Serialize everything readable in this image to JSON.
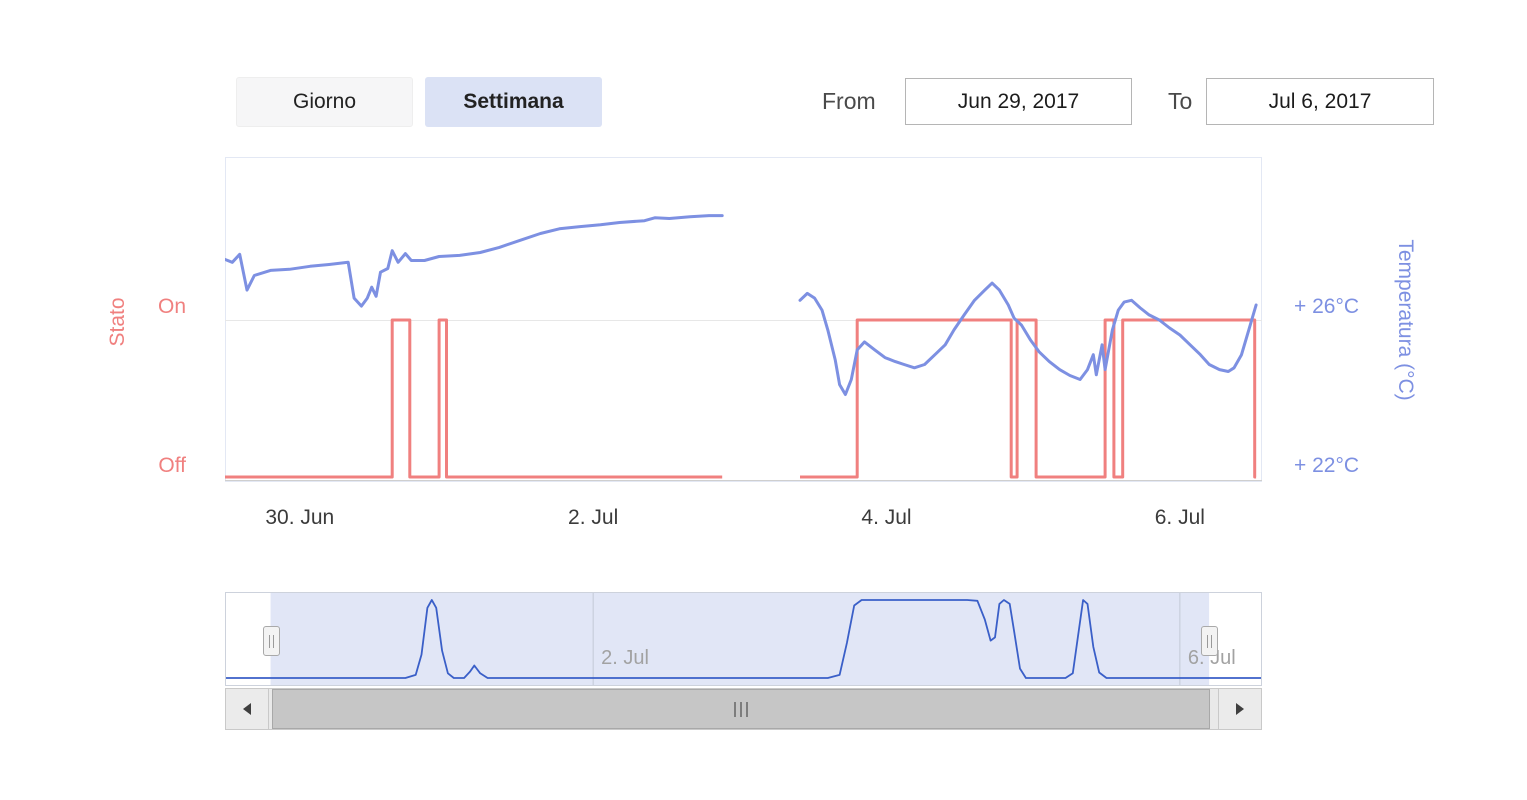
{
  "toolbar": {
    "range_buttons": [
      {
        "label": "Giorno",
        "active": false
      },
      {
        "label": "Settimana",
        "active": true
      }
    ],
    "from_label": "From",
    "from_value": "Jun 29, 2017",
    "to_label": "To",
    "to_value": "Jul 6, 2017"
  },
  "chart_data": {
    "type": "line",
    "title": "",
    "x_axis": {
      "range_days": [
        29.49,
        36.56
      ],
      "ticks": [
        {
          "day": 30,
          "label": "30. Jun"
        },
        {
          "day": 32,
          "label": "2. Jul"
        },
        {
          "day": 34,
          "label": "4. Jul"
        },
        {
          "day": 36,
          "label": "6. Jul"
        }
      ]
    },
    "y_axis_left": {
      "title": "Stato",
      "tick_labels": [
        "On",
        "Off"
      ],
      "color": "#f0807f"
    },
    "y_axis_right": {
      "title": "Temperatura (°C)",
      "tick_labels": [
        "+ 26°C",
        "+ 22°C"
      ],
      "tick_values": [
        26,
        22
      ],
      "color": "#7d90e2"
    },
    "plot_border_color": "#e3e8f4",
    "gridline_color": "#e7e7e7",
    "axis_line_color": "#cfcfcf",
    "series": {
      "temperature": {
        "name": "Temperatura",
        "type": "line",
        "unit": "°C",
        "color": "#7d90e2",
        "segments": [
          [
            [
              29.47,
              27.69
            ],
            [
              29.54,
              27.58
            ],
            [
              29.59,
              27.8
            ],
            [
              29.64,
              26.82
            ],
            [
              29.69,
              27.22
            ],
            [
              29.8,
              27.36
            ],
            [
              29.93,
              27.39
            ],
            [
              30.07,
              27.47
            ],
            [
              30.2,
              27.52
            ],
            [
              30.33,
              27.58
            ],
            [
              30.37,
              26.6
            ],
            [
              30.42,
              26.38
            ],
            [
              30.46,
              26.6
            ],
            [
              30.49,
              26.9
            ],
            [
              30.52,
              26.65
            ],
            [
              30.55,
              27.31
            ],
            [
              30.6,
              27.41
            ],
            [
              30.63,
              27.9
            ],
            [
              30.67,
              27.58
            ],
            [
              30.72,
              27.82
            ],
            [
              30.76,
              27.63
            ],
            [
              30.85,
              27.63
            ],
            [
              30.95,
              27.74
            ],
            [
              31.09,
              27.77
            ],
            [
              31.23,
              27.85
            ],
            [
              31.36,
              27.99
            ],
            [
              31.5,
              28.18
            ],
            [
              31.64,
              28.37
            ],
            [
              31.77,
              28.5
            ],
            [
              31.91,
              28.56
            ],
            [
              32.05,
              28.61
            ],
            [
              32.18,
              28.67
            ],
            [
              32.35,
              28.72
            ],
            [
              32.42,
              28.8
            ],
            [
              32.52,
              28.78
            ],
            [
              32.66,
              28.83
            ],
            [
              32.79,
              28.86
            ],
            [
              32.88,
              28.86
            ]
          ],
          [
            [
              33.41,
              26.54
            ],
            [
              33.46,
              26.73
            ],
            [
              33.51,
              26.6
            ],
            [
              33.56,
              26.27
            ],
            [
              33.6,
              25.73
            ],
            [
              33.65,
              24.91
            ],
            [
              33.68,
              24.23
            ],
            [
              33.72,
              23.96
            ],
            [
              33.76,
              24.37
            ],
            [
              33.8,
              25.18
            ],
            [
              33.85,
              25.4
            ],
            [
              33.92,
              25.18
            ],
            [
              33.99,
              24.97
            ],
            [
              34.06,
              24.86
            ],
            [
              34.12,
              24.78
            ],
            [
              34.19,
              24.69
            ],
            [
              34.26,
              24.78
            ],
            [
              34.33,
              25.05
            ],
            [
              34.4,
              25.32
            ],
            [
              34.46,
              25.73
            ],
            [
              34.53,
              26.14
            ],
            [
              34.6,
              26.54
            ],
            [
              34.67,
              26.82
            ],
            [
              34.72,
              27.01
            ],
            [
              34.77,
              26.82
            ],
            [
              34.83,
              26.41
            ],
            [
              34.87,
              26.05
            ],
            [
              34.92,
              25.86
            ],
            [
              34.98,
              25.46
            ],
            [
              35.04,
              25.13
            ],
            [
              35.11,
              24.86
            ],
            [
              35.18,
              24.64
            ],
            [
              35.25,
              24.48
            ],
            [
              35.32,
              24.37
            ],
            [
              35.37,
              24.64
            ],
            [
              35.41,
              25.05
            ],
            [
              35.43,
              24.5
            ],
            [
              35.47,
              25.32
            ],
            [
              35.49,
              24.64
            ],
            [
              35.54,
              25.73
            ],
            [
              35.58,
              26.27
            ],
            [
              35.62,
              26.49
            ],
            [
              35.67,
              26.54
            ],
            [
              35.73,
              26.33
            ],
            [
              35.79,
              26.14
            ],
            [
              35.86,
              26.0
            ],
            [
              35.93,
              25.78
            ],
            [
              36.0,
              25.59
            ],
            [
              36.07,
              25.32
            ],
            [
              36.14,
              25.05
            ],
            [
              36.2,
              24.78
            ],
            [
              36.27,
              24.64
            ],
            [
              36.33,
              24.59
            ],
            [
              36.37,
              24.69
            ],
            [
              36.42,
              25.05
            ],
            [
              36.47,
              25.73
            ],
            [
              36.52,
              26.41
            ]
          ]
        ]
      },
      "state": {
        "name": "Stato",
        "type": "step",
        "color": "#f0807f",
        "on_value": "On",
        "off_value": "Off",
        "segments": [
          {
            "range": [
              29.49,
              32.88
            ],
            "on_intervals": [
              [
                30.63,
                30.75
              ],
              [
                30.95,
                31.0
              ]
            ]
          },
          {
            "range": [
              33.41,
              36.52
            ],
            "on_intervals": [
              [
                33.8,
                34.85
              ],
              [
                34.89,
                35.02
              ],
              [
                35.49,
                35.55
              ],
              [
                35.61,
                36.51
              ]
            ]
          }
        ]
      }
    },
    "navigator": {
      "line_color": "#3a5fc8",
      "mask_color": "rgba(120,140,215,0.22)",
      "selection_frac": [
        0.044,
        0.949
      ],
      "ticks": [
        {
          "day": 32,
          "label": "2. Jul"
        },
        {
          "day": 36,
          "label": "6. Jul"
        }
      ],
      "points": [
        [
          29.47,
          0
        ],
        [
          30.72,
          0
        ],
        [
          30.79,
          0.04
        ],
        [
          30.83,
          0.3
        ],
        [
          30.87,
          0.9
        ],
        [
          30.9,
          1
        ],
        [
          30.93,
          0.9
        ],
        [
          30.97,
          0.35
        ],
        [
          31.01,
          0.06
        ],
        [
          31.05,
          0
        ],
        [
          31.12,
          0
        ],
        [
          31.16,
          0.08
        ],
        [
          31.19,
          0.16
        ],
        [
          31.23,
          0.06
        ],
        [
          31.28,
          0
        ],
        [
          33.6,
          0
        ],
        [
          33.68,
          0.04
        ],
        [
          33.73,
          0.45
        ],
        [
          33.78,
          0.93
        ],
        [
          33.83,
          1
        ],
        [
          34.55,
          1
        ],
        [
          34.62,
          0.99
        ],
        [
          34.67,
          0.75
        ],
        [
          34.71,
          0.48
        ],
        [
          34.74,
          0.52
        ],
        [
          34.77,
          0.95
        ],
        [
          34.8,
          1
        ],
        [
          34.84,
          0.95
        ],
        [
          34.87,
          0.6
        ],
        [
          34.91,
          0.12
        ],
        [
          34.95,
          0
        ],
        [
          35.22,
          0
        ],
        [
          35.27,
          0.06
        ],
        [
          35.31,
          0.6
        ],
        [
          35.34,
          1
        ],
        [
          35.37,
          0.95
        ],
        [
          35.41,
          0.4
        ],
        [
          35.45,
          0.07
        ],
        [
          35.5,
          0
        ],
        [
          36.56,
          0
        ]
      ]
    }
  }
}
